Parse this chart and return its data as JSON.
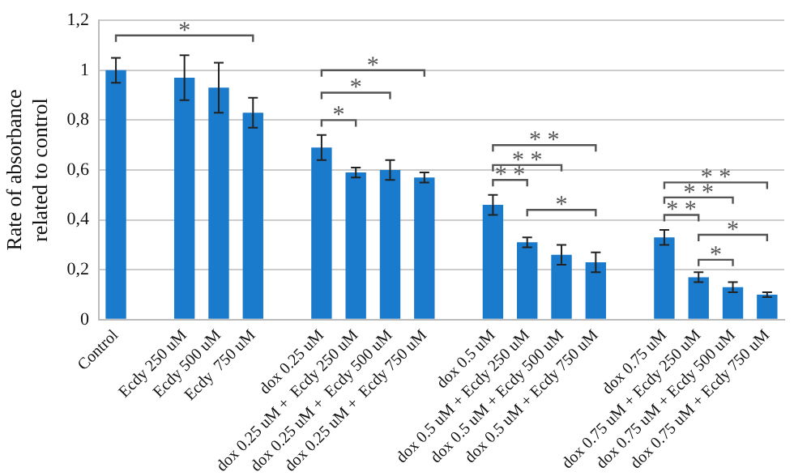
{
  "chart_data": {
    "type": "bar",
    "ylabel": "Rate of absorbance\nrelated to control",
    "categories": [
      "Control",
      null,
      "Ecdy 250 uM",
      "Ecdy 500 uM",
      "Ecdy  750 uM",
      null,
      "dox 0.25 uM",
      "dox 0.25 uM +  Ecdy 250 uM",
      "dox 0.25 uM +  Ecdy 500 uM",
      "dox 0.25 uM +  Ecdy 750 uM",
      null,
      "dox 0.5 uM",
      "dox 0.5 uM + Ecdy 250 uM",
      "dox 0.5 uM + Ecdy 500 uM",
      "dox 0.5 uM + Ecdy 750 uM",
      null,
      "dox 0.75 uM",
      "dox 0.75 uM + Ecdy 250 uM",
      "dox 0.75 uM + Ecdy 500 uM",
      "dox 0.75 uM + Ecdy 750 uM"
    ],
    "values": [
      1.0,
      null,
      0.97,
      0.93,
      0.83,
      null,
      0.69,
      0.59,
      0.6,
      0.57,
      null,
      0.46,
      0.31,
      0.26,
      0.23,
      null,
      0.33,
      0.17,
      0.13,
      0.1
    ],
    "errors": [
      0.05,
      null,
      0.09,
      0.1,
      0.06,
      null,
      0.05,
      0.02,
      0.04,
      0.02,
      null,
      0.04,
      0.02,
      0.04,
      0.04,
      null,
      0.03,
      0.02,
      0.02,
      0.01
    ],
    "color": "#1a7acb",
    "ylim": [
      0,
      1.2
    ],
    "yticks": [
      0,
      {
        "value": 0.2,
        "label": "0,2"
      },
      {
        "value": 0.4,
        "label": "0,4"
      },
      {
        "value": 0.6,
        "label": "0,6"
      },
      {
        "value": 0.8,
        "label": "0,8"
      },
      1,
      {
        "value": 1.2,
        "label": "1,2"
      }
    ],
    "grid": "y",
    "legend": false,
    "annotations": [
      "*",
      "*",
      "*",
      "*",
      "* *",
      "* *",
      "* *",
      "*",
      "* *",
      "* *",
      "* *",
      "*",
      "*"
    ]
  }
}
